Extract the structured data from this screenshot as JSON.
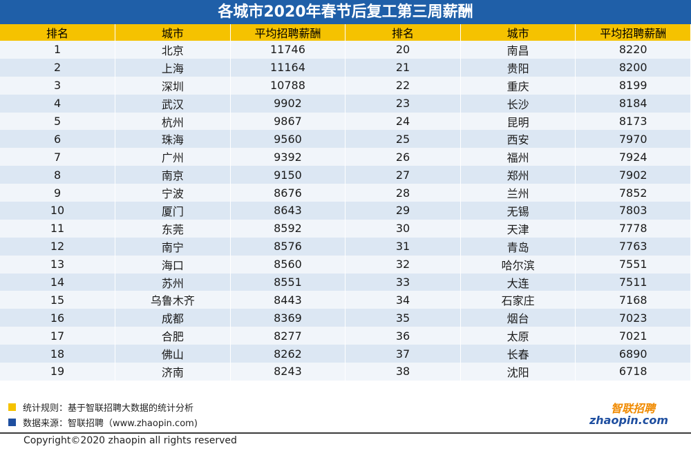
{
  "title": "各城市2020年春节后复工第三周薪酬",
  "headers": {
    "rank": "排名",
    "city": "城市",
    "salary": "平均招聘薪酬"
  },
  "rows": [
    {
      "rank1": "1",
      "city1": "北京",
      "sal1": "11746",
      "rank2": "20",
      "city2": "南昌",
      "sal2": "8220"
    },
    {
      "rank1": "2",
      "city1": "上海",
      "sal1": "11164",
      "rank2": "21",
      "city2": "贵阳",
      "sal2": "8200"
    },
    {
      "rank1": "3",
      "city1": "深圳",
      "sal1": "10788",
      "rank2": "22",
      "city2": "重庆",
      "sal2": "8199"
    },
    {
      "rank1": "4",
      "city1": "武汉",
      "sal1": "9902",
      "rank2": "23",
      "city2": "长沙",
      "sal2": "8184"
    },
    {
      "rank1": "5",
      "city1": "杭州",
      "sal1": "9867",
      "rank2": "24",
      "city2": "昆明",
      "sal2": "8173"
    },
    {
      "rank1": "6",
      "city1": "珠海",
      "sal1": "9560",
      "rank2": "25",
      "city2": "西安",
      "sal2": "7970"
    },
    {
      "rank1": "7",
      "city1": "广州",
      "sal1": "9392",
      "rank2": "26",
      "city2": "福州",
      "sal2": "7924"
    },
    {
      "rank1": "8",
      "city1": "南京",
      "sal1": "9150",
      "rank2": "27",
      "city2": "郑州",
      "sal2": "7902"
    },
    {
      "rank1": "9",
      "city1": "宁波",
      "sal1": "8676",
      "rank2": "28",
      "city2": "兰州",
      "sal2": "7852"
    },
    {
      "rank1": "10",
      "city1": "厦门",
      "sal1": "8643",
      "rank2": "29",
      "city2": "无锡",
      "sal2": "7803"
    },
    {
      "rank1": "11",
      "city1": "东莞",
      "sal1": "8592",
      "rank2": "30",
      "city2": "天津",
      "sal2": "7778"
    },
    {
      "rank1": "12",
      "city1": "南宁",
      "sal1": "8576",
      "rank2": "31",
      "city2": "青岛",
      "sal2": "7763"
    },
    {
      "rank1": "13",
      "city1": "海口",
      "sal1": "8560",
      "rank2": "32",
      "city2": "哈尔滨",
      "sal2": "7551"
    },
    {
      "rank1": "14",
      "city1": "苏州",
      "sal1": "8551",
      "rank2": "33",
      "city2": "大连",
      "sal2": "7511"
    },
    {
      "rank1": "15",
      "city1": "乌鲁木齐",
      "sal1": "8443",
      "rank2": "34",
      "city2": "石家庄",
      "sal2": "7168"
    },
    {
      "rank1": "16",
      "city1": "成都",
      "sal1": "8369",
      "rank2": "35",
      "city2": "烟台",
      "sal2": "7023"
    },
    {
      "rank1": "17",
      "city1": "合肥",
      "sal1": "8277",
      "rank2": "36",
      "city2": "太原",
      "sal2": "7021"
    },
    {
      "rank1": "18",
      "city1": "佛山",
      "sal1": "8262",
      "rank2": "37",
      "city2": "长春",
      "sal2": "6890"
    },
    {
      "rank1": "19",
      "city1": "济南",
      "sal1": "8243",
      "rank2": "38",
      "city2": "沈阳",
      "sal2": "6718"
    }
  ],
  "notes": {
    "rule": "统计规则：基于智联招聘大数据的统计分析",
    "source": "数据来源：智联招聘（www.zhaopin.com)"
  },
  "copyright": "Copyright©2020 zhaopin all rights reserved",
  "logo": {
    "cn": "智联招聘",
    "en": "zhaopin.com"
  },
  "colors": {
    "title_bg": "#1f5fa8",
    "header_bg": "#f5c200",
    "row_light": "#f1f5fa",
    "row_dark": "#dce7f3",
    "logo_orange": "#f08a00",
    "logo_blue": "#1f4fa0"
  }
}
